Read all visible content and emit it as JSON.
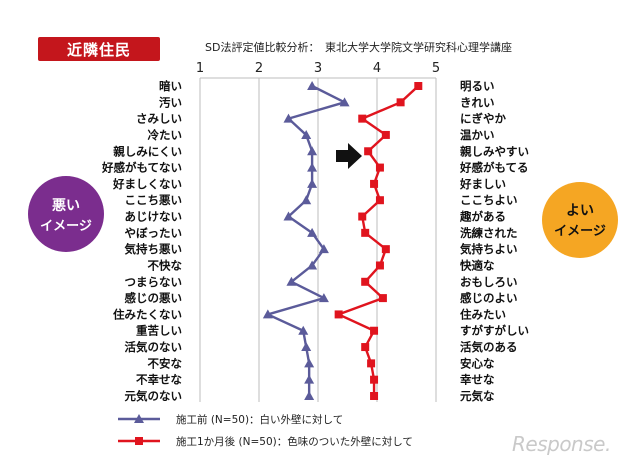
{
  "badge": "近隣住民",
  "subtitle": "SD法評定値比較分析：　東北大学大学院文学研究科心理学講座",
  "bad_image_label": [
    "悪い",
    "イメージ"
  ],
  "good_image_label": [
    "よい",
    "イメージ"
  ],
  "watermark": "Response.",
  "colors": {
    "before": "#5b5b9a",
    "after": "#e0141e",
    "badge": "#c4161c",
    "bad_circle": "#7b2d8e",
    "good_circle": "#f5a623"
  },
  "chart_data": {
    "type": "line",
    "xlim": [
      1,
      5
    ],
    "x_ticks": [
      1,
      2,
      3,
      4,
      5
    ],
    "grid": true,
    "legend_position": "bottom-left",
    "left_labels": [
      "暗い",
      "汚い",
      "さみしい",
      "冷たい",
      "親しみにくい",
      "好感がもてない",
      "好ましくない",
      "ここち悪い",
      "あじけない",
      "やぼったい",
      "気持ち悪い",
      "不快な",
      "つまらない",
      "感じの悪い",
      "住みたくない",
      "重苦しい",
      "活気のない",
      "不安な",
      "不幸せな",
      "元気のない"
    ],
    "right_labels": [
      "明るい",
      "きれい",
      "にぎやか",
      "温かい",
      "親しみやすい",
      "好感がもてる",
      "好ましい",
      "ここちよい",
      "趣がある",
      "洗練された",
      "気持ちよい",
      "快適な",
      "おもしろい",
      "感じのよい",
      "住みたい",
      "すがすがしい",
      "活気のある",
      "安心な",
      "幸せな",
      "元気な"
    ],
    "series": [
      {
        "name": "施工前 (N=50)：白い外壁に対して",
        "marker": "triangle",
        "values": [
          2.9,
          3.45,
          2.5,
          2.8,
          2.9,
          2.9,
          2.9,
          2.8,
          2.5,
          2.9,
          3.1,
          2.9,
          2.55,
          3.1,
          2.15,
          2.75,
          2.8,
          2.85,
          2.85,
          2.85
        ]
      },
      {
        "name": "施工1か月後 (N=50)：色味のついた外壁に対して",
        "marker": "square",
        "values": [
          4.7,
          4.4,
          3.75,
          4.15,
          3.85,
          4.05,
          3.95,
          4.05,
          3.75,
          3.8,
          4.15,
          4.05,
          3.8,
          4.1,
          3.35,
          3.95,
          3.8,
          3.9,
          3.95,
          3.95
        ]
      }
    ]
  }
}
